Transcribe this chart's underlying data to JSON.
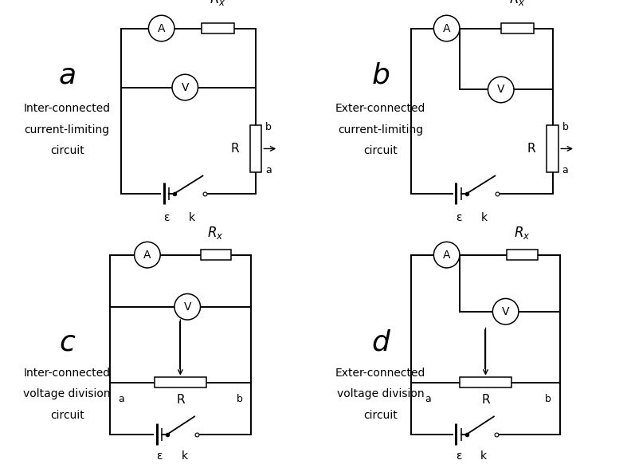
{
  "panels": [
    {
      "label": "a",
      "desc": [
        "Inter-connected",
        "current-limiting",
        "circuit"
      ],
      "type": "cl_inter"
    },
    {
      "label": "b",
      "desc": [
        "Exter-connected",
        "current-limiting",
        "circuit"
      ],
      "type": "cl_exter"
    },
    {
      "label": "c",
      "desc": [
        "Inter-connected",
        "voltage division",
        "circuit"
      ],
      "type": "vd_inter"
    },
    {
      "label": "d",
      "desc": [
        "Exter-connected",
        "voltage division",
        "circuit"
      ],
      "type": "vd_exter"
    }
  ],
  "label_fontsize": 26,
  "desc_fontsize": 10,
  "lw": 1.4
}
